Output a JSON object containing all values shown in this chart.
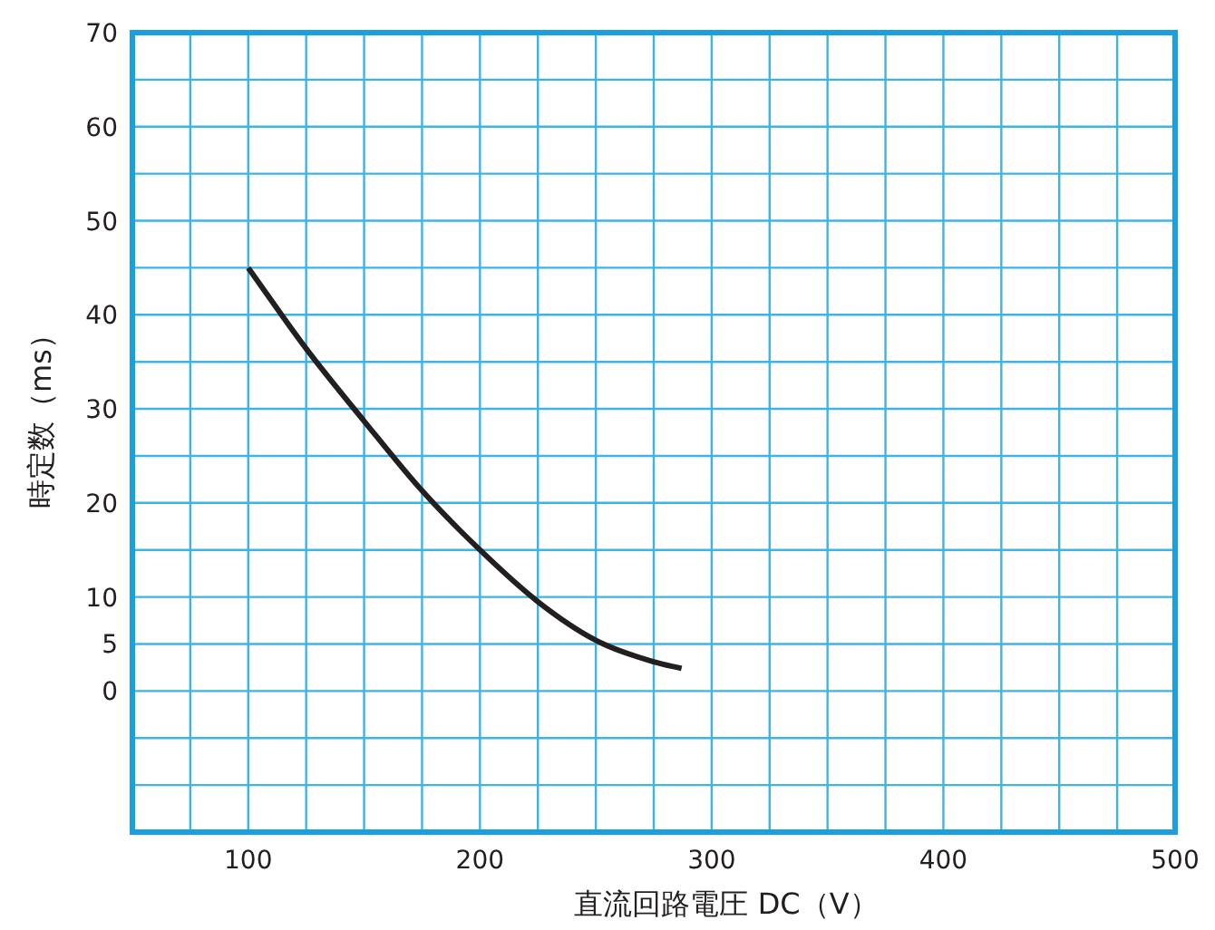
{
  "chart_data": {
    "type": "line",
    "xlabel": "直流回路電圧 DC（V）",
    "ylabel": "時定数（ms）",
    "x": [
      100,
      125,
      150,
      175,
      200,
      225,
      250,
      275,
      287
    ],
    "series": [
      {
        "color": "#231f20",
        "values": [
          45,
          36.4,
          28.7,
          21.3,
          15,
          9.5,
          5.4,
          3.1,
          2.4
        ]
      }
    ],
    "xlim": [
      50,
      500
    ],
    "xticks": [
      {
        "value": 50,
        "label": null
      },
      {
        "value": 75,
        "label": null
      },
      100,
      {
        "value": 125,
        "label": null
      },
      {
        "value": 150,
        "label": null
      },
      {
        "value": 175,
        "label": null
      },
      200,
      {
        "value": 225,
        "label": null
      },
      {
        "value": 250,
        "label": null
      },
      {
        "value": 275,
        "label": null
      },
      300,
      {
        "value": 325,
        "label": null
      },
      {
        "value": 350,
        "label": null
      },
      {
        "value": 375,
        "label": null
      },
      400,
      {
        "value": 425,
        "label": null
      },
      {
        "value": 450,
        "label": null
      },
      {
        "value": 475,
        "label": null
      },
      500
    ],
    "ylim": [
      -15,
      70
    ],
    "yticks": [
      {
        "value": -15,
        "label": null
      },
      {
        "value": -10,
        "label": null
      },
      {
        "value": -5,
        "label": null
      },
      0,
      5,
      10,
      {
        "value": 15,
        "label": null
      },
      20,
      {
        "value": 25,
        "label": null
      },
      30,
      {
        "value": 35,
        "label": null
      },
      40,
      {
        "value": 45,
        "label": null
      },
      50,
      {
        "value": 55,
        "label": null
      },
      60,
      {
        "value": 65,
        "label": null
      },
      70
    ],
    "grid": true,
    "marker": "none",
    "line_style": "solid"
  }
}
